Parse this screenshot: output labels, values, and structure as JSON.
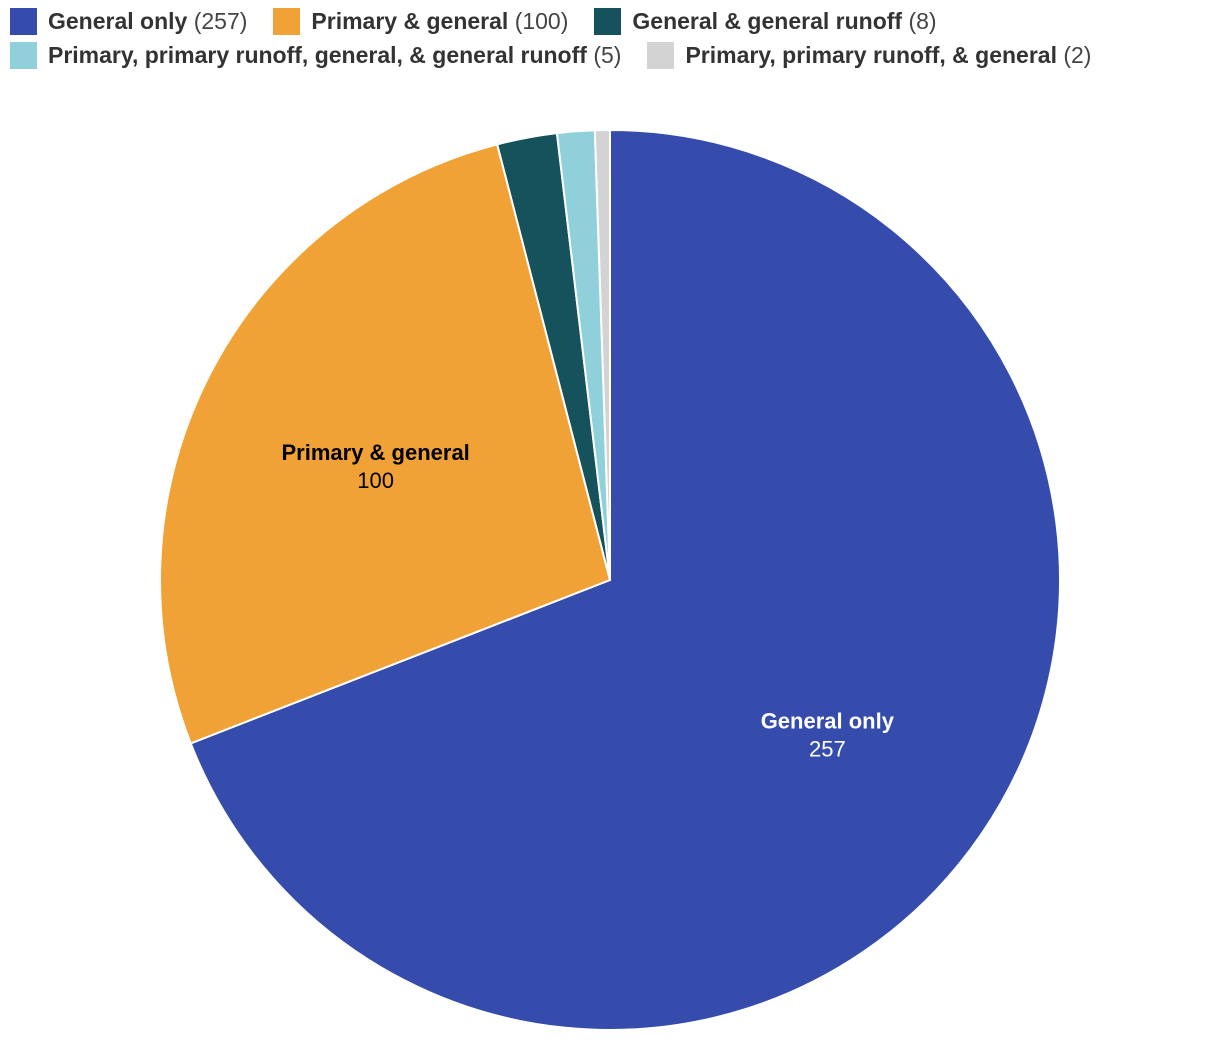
{
  "chart_data": {
    "type": "pie",
    "title": "",
    "slices": [
      {
        "name": "General only",
        "value": 257,
        "count_label": "(257)",
        "color": "#354CAD",
        "label_color": "#ffffff",
        "show_label": true
      },
      {
        "name": "Primary & general",
        "value": 100,
        "count_label": "(100)",
        "color": "#F0A236",
        "label_color": "#000000",
        "show_label": true
      },
      {
        "name": "General & general runoff",
        "value": 8,
        "count_label": "(8)",
        "color": "#16525C",
        "label_color": "#ffffff",
        "show_label": false
      },
      {
        "name": "Primary, primary runoff, general, & general runoff",
        "value": 5,
        "count_label": "(5)",
        "color": "#8FD0DB",
        "label_color": "#000000",
        "show_label": false
      },
      {
        "name": "Primary, primary runoff, & general",
        "value": 2,
        "count_label": "(2)",
        "color": "#D3D3D3",
        "label_color": "#000000",
        "show_label": false
      }
    ],
    "legend_position": "top"
  }
}
